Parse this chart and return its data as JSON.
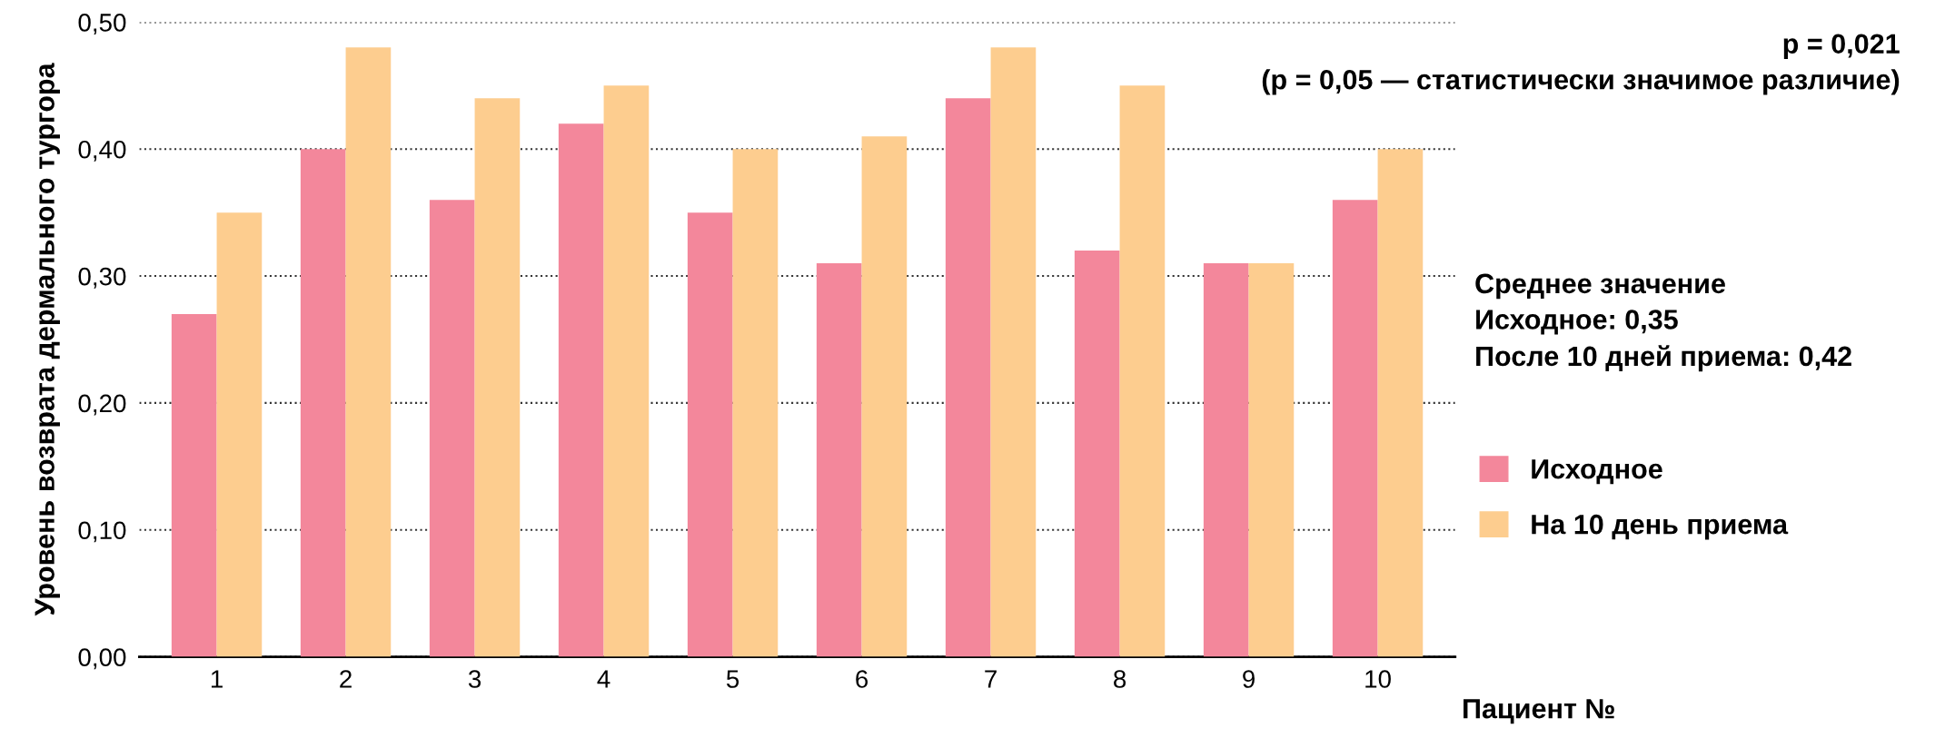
{
  "chart_data": {
    "type": "bar",
    "xlabel": "Пациент №",
    "ylabel": "Уровень возврата дермального тургора",
    "categories": [
      "1",
      "2",
      "3",
      "4",
      "5",
      "6",
      "7",
      "8",
      "9",
      "10"
    ],
    "series": [
      {
        "name": "Исходное",
        "color": "#f3879b",
        "values": [
          0.27,
          0.4,
          0.36,
          0.42,
          0.35,
          0.31,
          0.44,
          0.32,
          0.31,
          0.36
        ]
      },
      {
        "name": "На 10 день приема",
        "color": "#fdcd8f",
        "values": [
          0.35,
          0.48,
          0.44,
          0.45,
          0.4,
          0.41,
          0.48,
          0.45,
          0.31,
          0.4
        ]
      }
    ],
    "ylim": [
      0,
      0.5
    ],
    "yticks": [
      {
        "value": 0,
        "label": "0,00"
      },
      {
        "value": 0.1,
        "label": "0,10"
      },
      {
        "value": 0.2,
        "label": "0,20"
      },
      {
        "value": 0.3,
        "label": "0,30"
      },
      {
        "value": 0.4,
        "label": "0,40"
      },
      {
        "value": 0.5,
        "label": "0,50"
      }
    ],
    "grid": "y",
    "legend": "right",
    "annotations": [
      "p = 0,021\n(p = 0,05 — статистически значимое различие)",
      "Среднее значение\nИсходное: 0,35\nПосле 10 дней приема: 0,42"
    ]
  }
}
